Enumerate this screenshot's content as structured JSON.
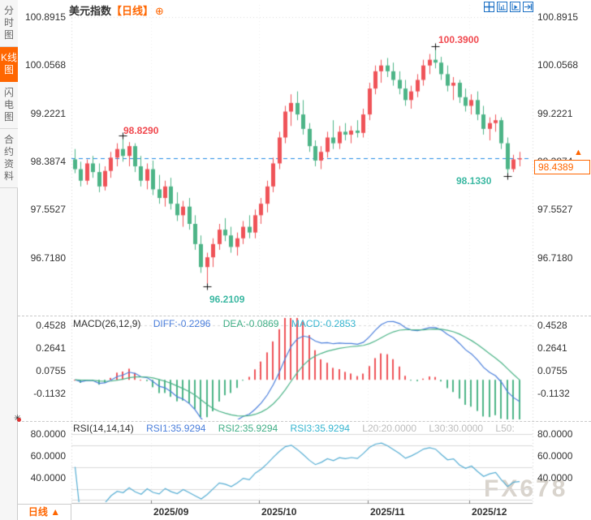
{
  "sidebar": {
    "items": [
      {
        "label": "分时图",
        "active": false
      },
      {
        "label": "K线图",
        "active": true
      },
      {
        "label": "闪电图",
        "active": false
      },
      {
        "label": "合约资料",
        "active": false
      }
    ]
  },
  "header": {
    "title": "美元指数",
    "period_tag": "【日线】",
    "add_icon": "⊕"
  },
  "toolbar": {
    "icons": [
      "crosshair-icon",
      "axis-scale-icon",
      "axis-indicator-icon",
      "goto-latest-icon"
    ]
  },
  "main_chart": {
    "y_labels": [
      "100.8915",
      "100.0568",
      "99.2221",
      "98.3874",
      "97.5527",
      "96.7180"
    ],
    "current_price_label": "98.4389",
    "latest_arrow": "▲",
    "annotations": {
      "high1": "98.8290",
      "high2": "100.3900",
      "low1": "96.2109",
      "low2": "98.1330"
    }
  },
  "macd_panel": {
    "name": "MACD(26,12,9)",
    "diff_label": "DIFF:-0.2296",
    "dea_label": "DEA:-0.0869",
    "macd_label": "MACD:-0.2853",
    "y_labels": [
      "0.4528",
      "0.2641",
      "0.0755",
      "-0.1132"
    ]
  },
  "rsi_panel": {
    "name": "RSI(14,14,14)",
    "rsi1_label": "RSI1:35.9294",
    "rsi2_label": "RSI2:35.9294",
    "rsi3_label": "RSI3:35.9294",
    "l20_label": "L20:20.0000",
    "l30_label": "L30:30.0000",
    "l50_label": "L50:",
    "y_labels": [
      "80.0000",
      "60.0000",
      "40.0000"
    ]
  },
  "x_axis": {
    "labels": [
      "2025/09",
      "2025/10",
      "2025/11",
      "2025/12"
    ]
  },
  "bottom_tab": {
    "label": "日线",
    "arrow": "▲"
  },
  "watermark": "FX678",
  "colors": {
    "accent_orange": "#ff6600",
    "candle_up_red": "#ef5358",
    "candle_down_green": "#4db487",
    "annotation_red": "#f0484e",
    "annotation_teal": "#3bb8a2",
    "price_line_blue": "#1e88e5",
    "diff_blue": "#4a7edb",
    "dea_green": "#4bb387",
    "macd_cyan": "#35b5d0",
    "rsi_line": "#55add3",
    "grid": "#d9d9d9",
    "grid_faint": "#ececec",
    "axis_line": "#b5b5b5",
    "icon_blue": "#1a6fc4"
  },
  "chart_data": {
    "type": "candlestick",
    "title": "美元指数 日线",
    "y_ticks": [
      100.8915,
      100.0568,
      99.2221,
      98.3874,
      97.5527,
      96.718
    ],
    "current_price": 98.4389,
    "x_tick_labels": [
      "2025/09",
      "2025/10",
      "2025/11",
      "2025/12"
    ],
    "x_tick_indices": [
      13,
      31,
      49,
      66
    ],
    "marks": [
      {
        "index": 8,
        "edge": "high",
        "label": "98.8290"
      },
      {
        "index": 60,
        "edge": "high",
        "label": "100.3900"
      },
      {
        "index": 22,
        "edge": "low",
        "label": "96.2109"
      },
      {
        "index": 72,
        "edge": "low",
        "label": "98.1330"
      }
    ],
    "candles": [
      [
        98.42,
        98.6,
        98.18,
        98.25
      ],
      [
        98.25,
        98.38,
        97.95,
        98.05
      ],
      [
        98.05,
        98.42,
        97.98,
        98.35
      ],
      [
        98.35,
        98.48,
        98.1,
        98.2
      ],
      [
        98.2,
        98.35,
        97.85,
        97.95
      ],
      [
        97.95,
        98.3,
        97.88,
        98.22
      ],
      [
        98.22,
        98.55,
        98.1,
        98.45
      ],
      [
        98.45,
        98.7,
        98.3,
        98.6
      ],
      [
        98.6,
        98.829,
        98.38,
        98.48
      ],
      [
        98.48,
        98.72,
        98.3,
        98.65
      ],
      [
        98.65,
        98.7,
        98.2,
        98.3
      ],
      [
        98.3,
        98.48,
        97.95,
        98.05
      ],
      [
        98.05,
        98.35,
        97.9,
        98.25
      ],
      [
        98.25,
        98.4,
        97.8,
        97.9
      ],
      [
        97.9,
        98.15,
        97.65,
        97.75
      ],
      [
        97.75,
        98.05,
        97.6,
        97.95
      ],
      [
        97.95,
        98.1,
        97.55,
        97.65
      ],
      [
        97.65,
        97.85,
        97.35,
        97.45
      ],
      [
        97.45,
        97.7,
        97.25,
        97.6
      ],
      [
        97.6,
        97.75,
        97.2,
        97.3
      ],
      [
        97.3,
        97.45,
        96.85,
        96.95
      ],
      [
        96.95,
        97.1,
        96.45,
        96.55
      ],
      [
        96.55,
        96.8,
        96.2109,
        96.72
      ],
      [
        96.72,
        97.05,
        96.55,
        96.95
      ],
      [
        96.95,
        97.3,
        96.85,
        97.2
      ],
      [
        97.2,
        97.4,
        97.0,
        97.1
      ],
      [
        97.1,
        97.25,
        96.8,
        96.9
      ],
      [
        96.9,
        97.15,
        96.75,
        97.05
      ],
      [
        97.05,
        97.35,
        96.95,
        97.25
      ],
      [
        97.25,
        97.45,
        97.05,
        97.15
      ],
      [
        97.15,
        97.55,
        97.05,
        97.45
      ],
      [
        97.45,
        97.75,
        97.3,
        97.65
      ],
      [
        97.65,
        98.05,
        97.5,
        97.95
      ],
      [
        97.95,
        98.45,
        97.85,
        98.35
      ],
      [
        98.35,
        98.9,
        98.25,
        98.8
      ],
      [
        98.8,
        99.35,
        98.7,
        99.25
      ],
      [
        99.25,
        99.55,
        99.0,
        99.4
      ],
      [
        99.4,
        99.6,
        99.1,
        99.2
      ],
      [
        99.2,
        99.45,
        98.85,
        98.95
      ],
      [
        98.95,
        99.05,
        98.55,
        98.65
      ],
      [
        98.65,
        98.75,
        98.3,
        98.4
      ],
      [
        98.4,
        98.65,
        98.25,
        98.55
      ],
      [
        98.55,
        98.9,
        98.45,
        98.8
      ],
      [
        98.8,
        99.1,
        98.6,
        98.7
      ],
      [
        98.7,
        99.0,
        98.6,
        98.9
      ],
      [
        98.9,
        99.05,
        98.75,
        98.85
      ],
      [
        98.85,
        99.0,
        98.7,
        98.92
      ],
      [
        98.92,
        99.1,
        98.8,
        98.88
      ],
      [
        98.88,
        99.3,
        98.8,
        99.2
      ],
      [
        99.2,
        99.75,
        99.1,
        99.65
      ],
      [
        99.65,
        100.05,
        99.55,
        99.95
      ],
      [
        99.95,
        100.15,
        99.75,
        100.05
      ],
      [
        100.05,
        100.18,
        99.85,
        99.95
      ],
      [
        99.95,
        100.1,
        99.7,
        99.8
      ],
      [
        99.8,
        99.95,
        99.55,
        99.65
      ],
      [
        99.65,
        99.8,
        99.35,
        99.45
      ],
      [
        99.45,
        99.7,
        99.3,
        99.6
      ],
      [
        99.6,
        99.9,
        99.5,
        99.8
      ],
      [
        99.8,
        100.15,
        99.7,
        100.05
      ],
      [
        100.05,
        100.25,
        99.9,
        100.15
      ],
      [
        100.15,
        100.39,
        100.0,
        100.1
      ],
      [
        100.1,
        100.2,
        99.8,
        99.9
      ],
      [
        99.9,
        100.05,
        99.6,
        99.7
      ],
      [
        99.7,
        99.85,
        99.45,
        99.75
      ],
      [
        99.75,
        99.8,
        99.4,
        99.5
      ],
      [
        99.5,
        99.65,
        99.25,
        99.35
      ],
      [
        99.35,
        99.55,
        99.2,
        99.45
      ],
      [
        99.45,
        99.6,
        99.1,
        99.2
      ],
      [
        99.2,
        99.35,
        98.85,
        98.95
      ],
      [
        98.95,
        99.15,
        98.75,
        99.05
      ],
      [
        99.05,
        99.2,
        98.9,
        99.1
      ],
      [
        99.1,
        99.15,
        98.6,
        98.7
      ],
      [
        98.7,
        98.8,
        98.133,
        98.25
      ],
      [
        98.25,
        98.5,
        98.2,
        98.42
      ],
      [
        98.42,
        98.55,
        98.3,
        98.4389
      ]
    ],
    "indicators": {
      "macd": {
        "params": [
          26,
          12,
          9
        ],
        "diff": -0.2296,
        "dea": -0.0869,
        "macd": -0.2853,
        "y_ticks": [
          0.4528,
          0.2641,
          0.0755,
          -0.1132
        ]
      },
      "rsi": {
        "params": [
          14,
          14,
          14
        ],
        "rsi1": 35.9294,
        "rsi2": 35.9294,
        "rsi3": 35.9294,
        "ref_lines": [
          80,
          70,
          50,
          30,
          20
        ],
        "y_ticks": [
          80,
          60,
          40
        ]
      }
    }
  }
}
